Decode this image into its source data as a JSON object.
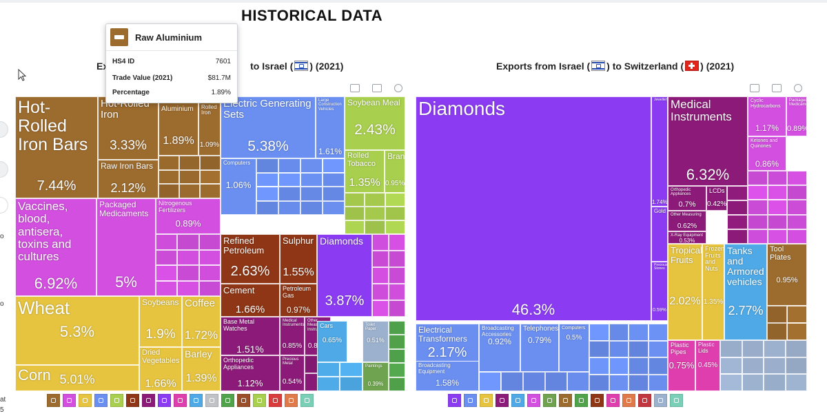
{
  "page": {
    "title": "HISTORICAL DATA"
  },
  "left_edge": {
    "texts": [
      "o",
      "o",
      "at",
      "5"
    ]
  },
  "tooltip": {
    "icon": "anvil-icon",
    "title": "Raw Aluminium",
    "rows": [
      {
        "label": "HS4 ID",
        "value": "7601"
      },
      {
        "label": "Trade Value (2021)",
        "value": "$81.7M"
      },
      {
        "label": "Percentage",
        "value": "1.89%"
      }
    ]
  },
  "charts": [
    {
      "title_prefix": "Ex",
      "title_suffix": "to Israel (",
      "year": ") (2021)",
      "flag": "israel-flag"
    },
    {
      "title_prefix": "Exports from Israel (",
      "title_mid": ") to Switzerland (",
      "year": ") (2021)",
      "flag1": "israel-flag",
      "flag2": "switzerland-flag"
    }
  ],
  "colors": {
    "metals": "#9c6b2e",
    "chemicals": "#d34fe0",
    "vegetable": "#e6c440",
    "machines": "#6a8ff0",
    "mineral": "#8e3616",
    "precious": "#8b3cf2",
    "instruments": "#8c1a79",
    "transport": "#4ea9e6",
    "food": "#a9cf4f",
    "plastics": "#df3fae",
    "stone": "#9cb1ce",
    "misc": "#6fa34f",
    "textiles": "#51a34b"
  },
  "legend": {
    "left": [
      "#9c6b2e",
      "#d34fe0",
      "#e6c440",
      "#6a8ff0",
      "#a9cf4f",
      "#8e3616",
      "#8c1a79",
      "#8b3cf2",
      "#df3fae",
      "#4ea9e6",
      "#bfc3c8",
      "#51a34b",
      "#9a4e2a",
      "#a9cf4f",
      "#d93c3c",
      "#e07a4a",
      "#7ad0b7"
    ],
    "right": [
      "#8b3cf2",
      "#6a8ff0",
      "#e6c440",
      "#8c1a79",
      "#4ea9e6",
      "#d34fe0",
      "#6fa34f",
      "#9c6b2e",
      "#51a34b",
      "#8e3616",
      "#df3fae",
      "#e07a4a",
      "#c2363f",
      "#9cb1ce",
      "#7ad0b7"
    ]
  },
  "chart_data": [
    {
      "type": "treemap",
      "title": "Exports from Switzerland to Israel (2021)",
      "items": [
        {
          "name": "Hot-Rolled Iron Bars",
          "pct": "7.44%",
          "value": 7.44
        },
        {
          "name": "Hot-Rolled Iron",
          "pct": "3.33%",
          "value": 3.33
        },
        {
          "name": "Raw Iron Bars",
          "pct": "2.12%",
          "value": 2.12
        },
        {
          "name": "Raw Aluminium",
          "pct": "1.89%",
          "value": 1.89
        },
        {
          "name": "Flat-Rolled Iron",
          "pct": "1.09%",
          "value": 1.09
        },
        {
          "name": "Vaccines, blood, antisera, toxins and cultures",
          "pct": "6.92%",
          "value": 6.92
        },
        {
          "name": "Packaged Medicaments",
          "pct": "5%",
          "value": 5.0
        },
        {
          "name": "Nitrogenous Fertilizers",
          "pct": "0.89%",
          "value": 0.89
        },
        {
          "name": "Wheat",
          "pct": "5.3%",
          "value": 5.3
        },
        {
          "name": "Corn",
          "pct": "5.01%",
          "value": 5.01
        },
        {
          "name": "Soybeans",
          "pct": "1.9%",
          "value": 1.9
        },
        {
          "name": "Coffee",
          "pct": "1.72%",
          "value": 1.72
        },
        {
          "name": "Dried Vegetables",
          "pct": "1.66%",
          "value": 1.66
        },
        {
          "name": "Barley",
          "pct": "1.39%",
          "value": 1.39
        },
        {
          "name": "Electric Generating Sets",
          "pct": "5.38%",
          "value": 5.38
        },
        {
          "name": "Large Construction Vehicles",
          "pct": "1.61%",
          "value": 1.61
        },
        {
          "name": "Computers",
          "pct": "1.06%",
          "value": 1.06
        },
        {
          "name": "Soybean Meal",
          "pct": "2.43%",
          "value": 2.43
        },
        {
          "name": "Rolled Tobacco",
          "pct": "1.35%",
          "value": 1.35
        },
        {
          "name": "Bran",
          "pct": "0.95%",
          "value": 0.95
        },
        {
          "name": "Refined Petroleum",
          "pct": "2.63%",
          "value": 2.63
        },
        {
          "name": "Sulphur",
          "pct": "1.55%",
          "value": 1.55
        },
        {
          "name": "Cement",
          "pct": "1.66%",
          "value": 1.66
        },
        {
          "name": "Petroleum Gas",
          "pct": "0.97%",
          "value": 0.97
        },
        {
          "name": "Diamonds",
          "pct": "3.87%",
          "value": 3.87
        },
        {
          "name": "Base Metal Watches",
          "pct": "1.51%",
          "value": 1.51
        },
        {
          "name": "Medical Instruments",
          "pct": "0.85%",
          "value": 0.85
        },
        {
          "name": "Other Measuring Instruments",
          "pct": "0.84%",
          "value": 0.84
        },
        {
          "name": "Orthopedic Appliances",
          "pct": "1.12%",
          "value": 1.12
        },
        {
          "name": "Precious Metal",
          "pct": "0.54%",
          "value": 0.54
        },
        {
          "name": "Cars",
          "pct": "0.65%",
          "value": 0.65
        },
        {
          "name": "Toilet Paper",
          "pct": "0.51%",
          "value": 0.51
        },
        {
          "name": "Paintings",
          "pct": "0.39%",
          "value": 0.39
        }
      ]
    },
    {
      "type": "treemap",
      "title": "Exports from Israel to Switzerland (2021)",
      "items": [
        {
          "name": "Diamonds",
          "pct": "46.3%",
          "value": 46.3
        },
        {
          "name": "Jewellery",
          "pct": "1.74%",
          "value": 1.74
        },
        {
          "name": "Gold",
          "pct": "1.02%",
          "value": 1.02
        },
        {
          "name": "Precious Stones",
          "pct": "0.59%",
          "value": 0.59
        },
        {
          "name": "Medical Instruments",
          "pct": "6.32%",
          "value": 6.32
        },
        {
          "name": "Orthopedic Appliances",
          "pct": "0.7%",
          "value": 0.7
        },
        {
          "name": "LCDs",
          "pct": "0.42%",
          "value": 0.42
        },
        {
          "name": "Other Measuring",
          "pct": "0.62%",
          "value": 0.62
        },
        {
          "name": "X-Ray Equipment",
          "pct": "0.53%",
          "value": 0.53
        },
        {
          "name": "Cyclic Hydrocarbons",
          "pct": "1.17%",
          "value": 1.17
        },
        {
          "name": "Packaged Medicaments",
          "pct": "0.89%",
          "value": 0.89
        },
        {
          "name": "Ketones and Quinones",
          "pct": "0.86%",
          "value": 0.86
        },
        {
          "name": "Electrical Transformers",
          "pct": "2.17%",
          "value": 2.17
        },
        {
          "name": "Broadcasting Equipment",
          "pct": "1.58%",
          "value": 1.58
        },
        {
          "name": "Broadcasting Accessories",
          "pct": "0.92%",
          "value": 0.92
        },
        {
          "name": "Telephones",
          "pct": "0.79%",
          "value": 0.79
        },
        {
          "name": "Computers",
          "pct": "0.5%",
          "value": 0.5
        },
        {
          "name": "Tropical Fruits",
          "pct": "2.02%",
          "value": 2.02
        },
        {
          "name": "Frozen Fruits and Nuts",
          "pct": "1.35%",
          "value": 1.35
        },
        {
          "name": "Tanks and Armored vehicles",
          "pct": "2.77%",
          "value": 2.77
        },
        {
          "name": "Tool Plates",
          "pct": "0.95%",
          "value": 0.95
        },
        {
          "name": "Plastic Pipes",
          "pct": "0.75%",
          "value": 0.75
        },
        {
          "name": "Plastic Lids",
          "pct": "0.45%",
          "value": 0.45
        }
      ]
    }
  ]
}
